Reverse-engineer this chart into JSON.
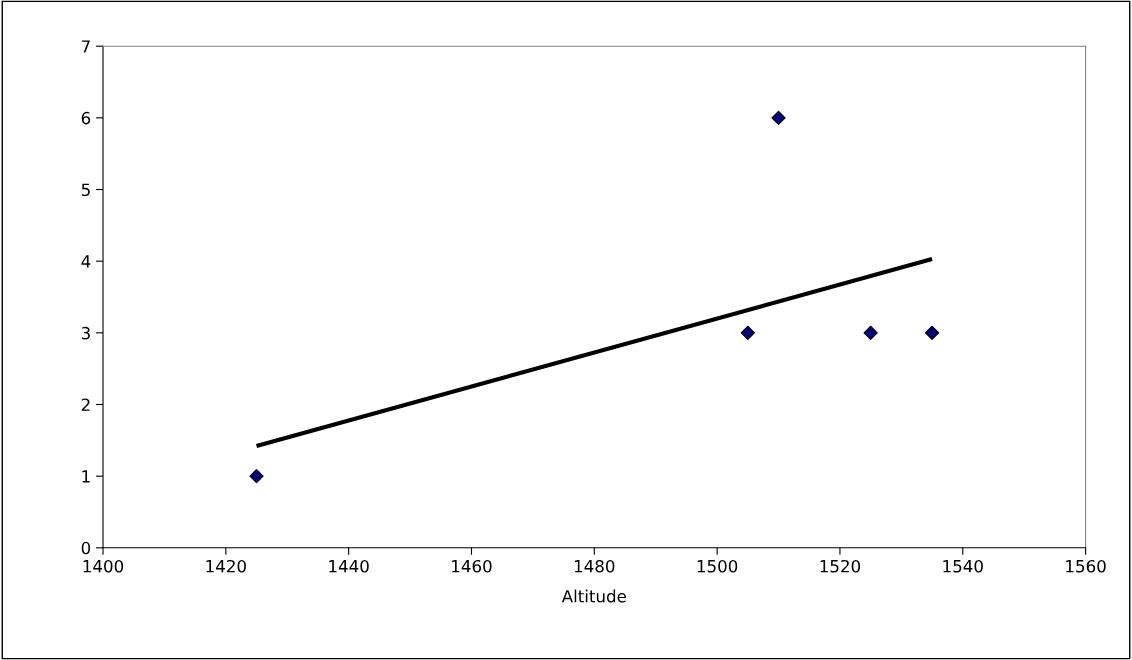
{
  "chart_data": {
    "type": "scatter",
    "xlabel": "Altitude",
    "xlim": [
      1400,
      1560
    ],
    "xticks": [
      1400,
      1420,
      1440,
      1460,
      1480,
      1500,
      1520,
      1540,
      1560
    ],
    "ylim": [
      0,
      7
    ],
    "yticks": [
      0,
      1,
      2,
      3,
      4,
      5,
      6,
      7
    ],
    "grid": false,
    "legend": false,
    "marker": "diamond",
    "series": [
      {
        "color": "#000080",
        "x": [
          1425,
          1505,
          1510,
          1525,
          1535
        ],
        "values": [
          1,
          3,
          6,
          3,
          3
        ]
      },
      {
        "type": "line",
        "color": "#000000",
        "x": [
          1425,
          1535
        ],
        "values": [
          1.42,
          4.03
        ],
        "marker": "none",
        "line_style": "solid"
      }
    ]
  }
}
